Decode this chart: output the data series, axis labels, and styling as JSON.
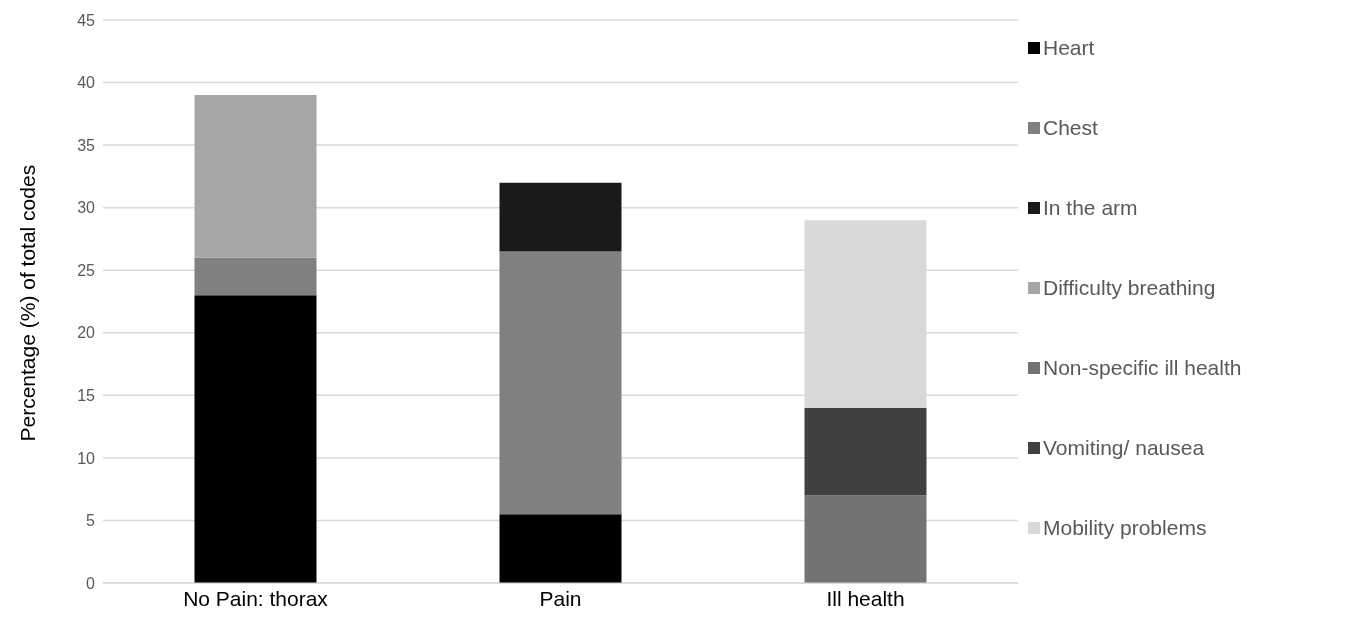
{
  "chart_data": {
    "type": "bar",
    "stacked": true,
    "ylabel": "Percentage (%) of total codes",
    "categories": [
      "No Pain: thorax",
      "Pain",
      "Ill health"
    ],
    "series": [
      {
        "name": "Heart",
        "color": "#000000",
        "values": [
          23,
          5.5,
          null
        ]
      },
      {
        "name": "Chest",
        "color": "#808080",
        "values": [
          3,
          21,
          null
        ]
      },
      {
        "name": "In the arm",
        "color": "#1a1a1a",
        "values": [
          null,
          5.5,
          null
        ]
      },
      {
        "name": "Difficulty breathing",
        "color": "#a6a6a6",
        "values": [
          13,
          null,
          null
        ]
      },
      {
        "name": "Non-specific ill health",
        "color": "#737373",
        "values": [
          null,
          null,
          7
        ]
      },
      {
        "name": "Vomiting/ nausea",
        "color": "#404040",
        "values": [
          null,
          null,
          7
        ]
      },
      {
        "name": "Mobility problems",
        "color": "#d9d9d9",
        "values": [
          null,
          null,
          15
        ]
      }
    ],
    "ylim": [
      0,
      45
    ],
    "yticks": [
      0,
      5,
      10,
      15,
      20,
      25,
      30,
      35,
      40,
      45
    ],
    "grid": "y",
    "legend": "right"
  }
}
